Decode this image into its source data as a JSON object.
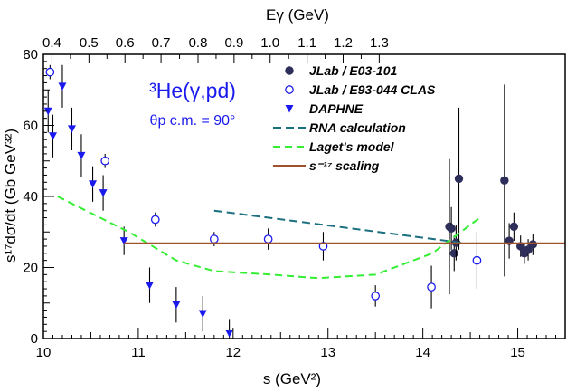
{
  "chart_data": {
    "type": "scatter",
    "xlabel": "s (GeV²)",
    "ylabel": "s¹⁷dσ/dt (Gb GeV³²)",
    "top_axis_label": "Eγ (GeV)",
    "xlim": [
      10,
      15.5
    ],
    "ylim": [
      0,
      80
    ],
    "x_ticks": [
      10,
      11,
      12,
      13,
      14,
      15
    ],
    "y_ticks": [
      0,
      20,
      40,
      60,
      80
    ],
    "top_ticks": [
      0.4,
      0.5,
      0.6,
      0.7,
      0.8,
      0.9,
      1.0,
      1.1,
      1.2,
      1.3
    ],
    "top_tick_labels": [
      "0.4",
      "0.5",
      "0.6",
      "0.7",
      "0.8",
      "0.9",
      "1.0",
      "1.1",
      "1.2",
      "1.3"
    ],
    "top_tick_s": [
      10.09,
      10.48,
      10.86,
      11.24,
      11.63,
      12.01,
      12.39,
      12.78,
      13.16,
      13.54
    ],
    "annotation": {
      "reaction": "³He(γ,pd)",
      "angle": "θp c.m. = 90°"
    },
    "colors": {
      "jlab_e03": "#2e2e5a",
      "clas": "#1a1aee",
      "daphne": "#1a1aee",
      "rna": "#1a6f80",
      "laget": "#33ee33",
      "scaling": "#a0522d",
      "reaction_text": "#1a1aee"
    },
    "series": [
      {
        "name": "JLab / E03-101",
        "kind": "filled-circle",
        "points": [
          {
            "x": 14.28,
            "y": 31.5,
            "err": 19
          },
          {
            "x": 14.3,
            "y": 31.0,
            "err": 6
          },
          {
            "x": 14.33,
            "y": 24.0,
            "err": 5
          },
          {
            "x": 14.35,
            "y": 27.0,
            "err": 5
          },
          {
            "x": 14.38,
            "y": 45.0,
            "err": 20
          },
          {
            "x": 14.86,
            "y": 44.5,
            "err": 27
          },
          {
            "x": 14.91,
            "y": 27.5,
            "err": 5
          },
          {
            "x": 14.96,
            "y": 31.5,
            "err": 4
          },
          {
            "x": 15.03,
            "y": 26.0,
            "err": 3
          },
          {
            "x": 15.07,
            "y": 24.0,
            "err": 3
          },
          {
            "x": 15.11,
            "y": 25.0,
            "err": 3
          },
          {
            "x": 15.16,
            "y": 26.5,
            "err": 3
          }
        ]
      },
      {
        "name": "JLab / E93-044 CLAS",
        "kind": "open-circle",
        "points": [
          {
            "x": 10.07,
            "y": 75.0,
            "err": 2
          },
          {
            "x": 10.65,
            "y": 50.0,
            "err": 2
          },
          {
            "x": 11.18,
            "y": 33.5,
            "err": 2
          },
          {
            "x": 11.8,
            "y": 28.0,
            "err": 2
          },
          {
            "x": 12.37,
            "y": 28.0,
            "err": 3
          },
          {
            "x": 12.95,
            "y": 26.0,
            "err": 4
          },
          {
            "x": 13.5,
            "y": 12.0,
            "err": 3
          },
          {
            "x": 14.09,
            "y": 14.5,
            "err": 6
          },
          {
            "x": 14.57,
            "y": 22.0,
            "err": 8
          }
        ]
      },
      {
        "name": "DAPHNE",
        "kind": "triangle-down",
        "points": [
          {
            "x": 10.05,
            "y": 64.0,
            "err": 6
          },
          {
            "x": 10.1,
            "y": 57.0,
            "err": 6
          },
          {
            "x": 10.2,
            "y": 71.0,
            "err": 6
          },
          {
            "x": 10.3,
            "y": 59.0,
            "err": 6
          },
          {
            "x": 10.4,
            "y": 51.5,
            "err": 6
          },
          {
            "x": 10.52,
            "y": 43.5,
            "err": 5
          },
          {
            "x": 10.63,
            "y": 41.0,
            "err": 5
          },
          {
            "x": 10.85,
            "y": 27.5,
            "err": 4
          },
          {
            "x": 11.12,
            "y": 15.0,
            "err": 5
          },
          {
            "x": 11.4,
            "y": 9.5,
            "err": 5
          },
          {
            "x": 11.68,
            "y": 7.0,
            "err": 5
          },
          {
            "x": 11.96,
            "y": 1.5,
            "err": 4
          }
        ]
      },
      {
        "name": "RNA calculation",
        "kind": "dashed-line",
        "x": [
          11.8,
          14.4
        ],
        "y": [
          36.0,
          27.0
        ]
      },
      {
        "name": "Laget's model",
        "kind": "dashed-line",
        "x": [
          10.15,
          10.9,
          11.4,
          11.8,
          12.4,
          12.9,
          13.5,
          14.1,
          14.4,
          14.6
        ],
        "y": [
          40.0,
          30.0,
          22.0,
          19.0,
          18.0,
          17.0,
          18.0,
          24.0,
          30.0,
          34.0
        ]
      },
      {
        "name": "s⁻¹⁷ scaling",
        "kind": "solid-line",
        "x": [
          10.85,
          15.5
        ],
        "y": [
          26.8,
          26.8
        ]
      }
    ],
    "legend": {
      "placement": "top-right",
      "entries": [
        {
          "label": "JLab / E03-101",
          "symbol": "filled-circle"
        },
        {
          "label": "JLab / E93-044 CLAS",
          "symbol": "open-circle"
        },
        {
          "label": "DAPHNE",
          "symbol": "triangle-down"
        },
        {
          "label": "RNA calculation",
          "symbol": "rna-dash"
        },
        {
          "label": "Laget's model",
          "symbol": "laget-dash"
        },
        {
          "label": "s⁻¹⁷ scaling",
          "symbol": "scaling-line"
        }
      ]
    }
  }
}
